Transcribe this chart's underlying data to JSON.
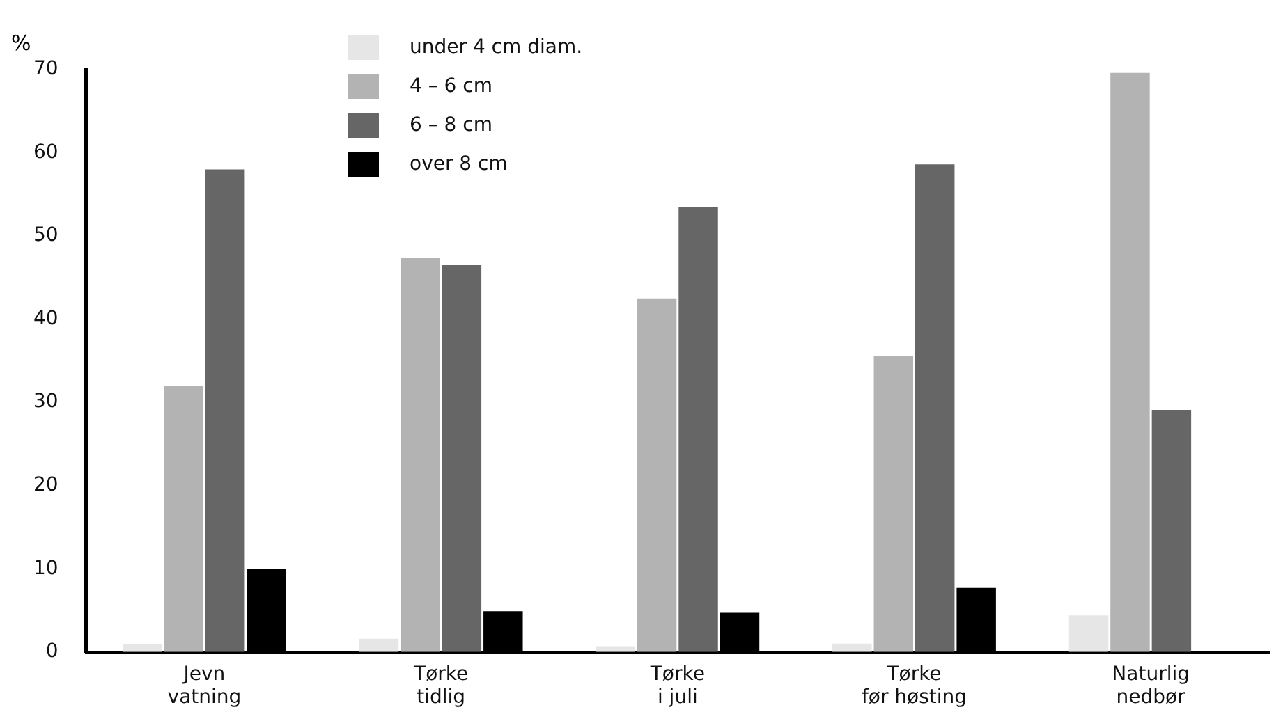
{
  "chart_data": {
    "type": "bar",
    "ylabel": "%",
    "categories": [
      "Jevn\nvatning",
      "Tørke\ntidlig",
      "Tørke\ni juli",
      "Tørke\nfør høsting",
      "Naturlig\nnedbør"
    ],
    "series": [
      {
        "name": "under 4 cm diam.",
        "color": "#e6e6e6",
        "values": [
          0.9,
          1.6,
          0.7,
          1,
          4.4
        ]
      },
      {
        "name": "4 – 6 cm",
        "color": "#b3b3b3",
        "values": [
          32,
          47.4,
          42.5,
          35.6,
          69.6
        ]
      },
      {
        "name": "6 – 8 cm",
        "color": "#666666",
        "values": [
          58,
          46.5,
          53.5,
          58.6,
          29.1
        ]
      },
      {
        "name": "over 8 cm",
        "color": "#000000",
        "values": [
          10,
          4.9,
          4.7,
          7.7,
          0
        ]
      }
    ],
    "ylim": [
      0,
      70
    ],
    "yticks": [
      0,
      10,
      20,
      30,
      40,
      50,
      60,
      70
    ],
    "grid": false,
    "legend": "top"
  }
}
